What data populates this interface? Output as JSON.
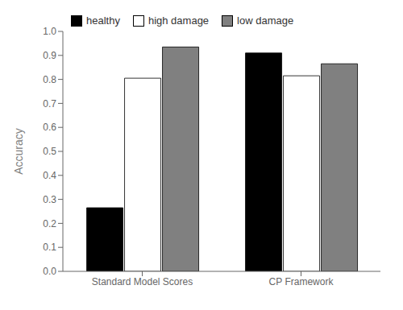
{
  "chart_data": {
    "type": "bar",
    "categories": [
      "Standard Model Scores",
      "CP Framework"
    ],
    "series": [
      {
        "name": "healthy",
        "color": "#000000",
        "values": [
          0.265,
          0.91
        ]
      },
      {
        "name": "high damage",
        "color": "#ffffff",
        "values": [
          0.805,
          0.815
        ]
      },
      {
        "name": "low damage",
        "color": "#808080",
        "values": [
          0.935,
          0.865
        ]
      }
    ],
    "ylabel": "Accuracy",
    "ylim": [
      0.0,
      1.0
    ],
    "yticks": [
      {
        "value": 0,
        "label": "0.0"
      },
      0.1,
      0.2,
      0.3,
      0.4,
      0.5,
      0.6,
      0.7,
      0.8,
      0.9,
      {
        "value": 1,
        "label": "1.0"
      }
    ],
    "legend": "upper left",
    "grid": false
  }
}
